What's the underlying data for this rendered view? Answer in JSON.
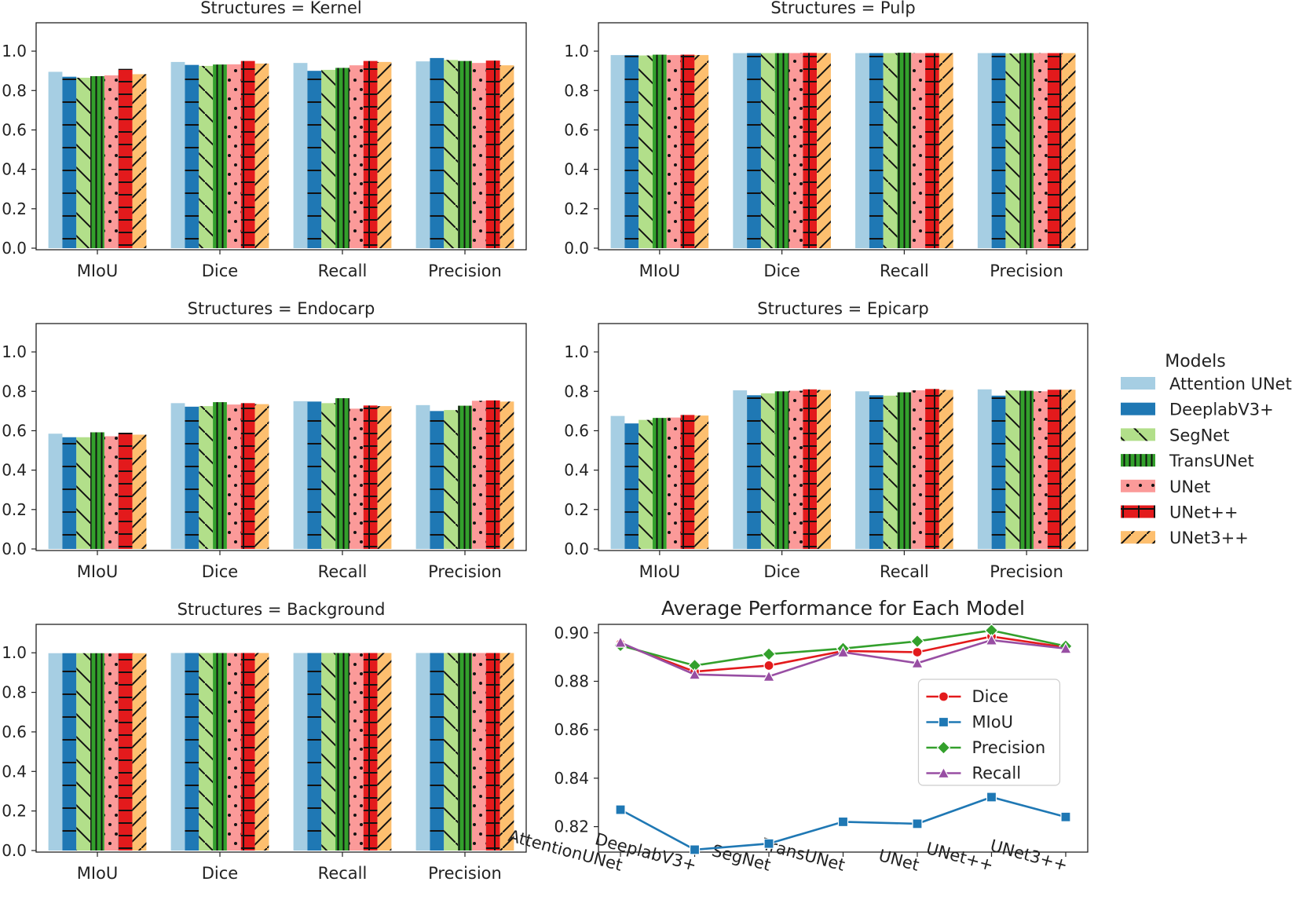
{
  "figure": {
    "legend": {
      "title": "Models",
      "items": [
        "Attention UNet",
        "DeeplabV3+",
        "SegNet",
        "TransUNet",
        "UNet",
        "UNet++",
        "UNet3++"
      ]
    }
  },
  "model_styles": [
    {
      "color": "#a6cee3",
      "hatch": "none"
    },
    {
      "color": "#1f78b4",
      "hatch": "hline"
    },
    {
      "color": "#b2df8a",
      "hatch": "backslash"
    },
    {
      "color": "#33a02c",
      "hatch": "vline"
    },
    {
      "color": "#fb9a99",
      "hatch": "dots"
    },
    {
      "color": "#e31a1c",
      "hatch": "grid"
    },
    {
      "color": "#fdbf6f",
      "hatch": "slash"
    }
  ],
  "line_styles": {
    "Dice": {
      "color": "#e31a1c",
      "marker": "circle"
    },
    "MIoU": {
      "color": "#1f78b4",
      "marker": "square"
    },
    "Precision": {
      "color": "#33a02c",
      "marker": "diamond"
    },
    "Recall": {
      "color": "#984ea3",
      "marker": "triangle"
    }
  },
  "chart_data": [
    {
      "type": "bar",
      "title": "Structures = Kernel",
      "categories": [
        "MIoU",
        "Dice",
        "Recall",
        "Precision"
      ],
      "yticks": [
        "0.0",
        "0.2",
        "0.4",
        "0.6",
        "0.8",
        "1.0"
      ],
      "ylim": [
        0,
        1.1
      ],
      "series": [
        {
          "name": "Attention UNet",
          "values": [
            0.895,
            0.945,
            0.94,
            0.948
          ]
        },
        {
          "name": "DeeplabV3+",
          "values": [
            0.87,
            0.93,
            0.9,
            0.965
          ]
        },
        {
          "name": "SegNet",
          "values": [
            0.865,
            0.925,
            0.905,
            0.955
          ]
        },
        {
          "name": "TransUNet",
          "values": [
            0.873,
            0.932,
            0.915,
            0.95
          ]
        },
        {
          "name": "UNet",
          "values": [
            0.877,
            0.933,
            0.928,
            0.94
          ]
        },
        {
          "name": "UNet++",
          "values": [
            0.91,
            0.95,
            0.95,
            0.952
          ]
        },
        {
          "name": "UNet3++",
          "values": [
            0.883,
            0.937,
            0.945,
            0.928
          ]
        }
      ]
    },
    {
      "type": "bar",
      "title": "Structures = Pulp",
      "categories": [
        "MIoU",
        "Dice",
        "Recall",
        "Precision"
      ],
      "yticks": [
        "0.0",
        "0.2",
        "0.4",
        "0.6",
        "0.8",
        "1.0"
      ],
      "ylim": [
        0,
        1.1
      ],
      "series": [
        {
          "name": "Attention UNet",
          "values": [
            0.98,
            0.99,
            0.99,
            0.99
          ]
        },
        {
          "name": "DeeplabV3+",
          "values": [
            0.98,
            0.99,
            0.99,
            0.99
          ]
        },
        {
          "name": "SegNet",
          "values": [
            0.978,
            0.99,
            0.99,
            0.988
          ]
        },
        {
          "name": "TransUNet",
          "values": [
            0.982,
            0.99,
            0.992,
            0.99
          ]
        },
        {
          "name": "UNet",
          "values": [
            0.98,
            0.99,
            0.99,
            0.99
          ]
        },
        {
          "name": "UNet++",
          "values": [
            0.982,
            0.991,
            0.99,
            0.99
          ]
        },
        {
          "name": "UNet3++",
          "values": [
            0.98,
            0.99,
            0.99,
            0.99
          ]
        }
      ]
    },
    {
      "type": "bar",
      "title": "Structures = Endocarp",
      "categories": [
        "MIoU",
        "Dice",
        "Recall",
        "Precision"
      ],
      "yticks": [
        "0.0",
        "0.2",
        "0.4",
        "0.6",
        "0.8",
        "1.0"
      ],
      "ylim": [
        0,
        1.1
      ],
      "series": [
        {
          "name": "Attention UNet",
          "values": [
            0.585,
            0.74,
            0.75,
            0.73
          ]
        },
        {
          "name": "DeeplabV3+",
          "values": [
            0.567,
            0.722,
            0.748,
            0.7
          ]
        },
        {
          "name": "SegNet",
          "values": [
            0.567,
            0.725,
            0.74,
            0.705
          ]
        },
        {
          "name": "TransUNet",
          "values": [
            0.592,
            0.745,
            0.765,
            0.727
          ]
        },
        {
          "name": "UNet",
          "values": [
            0.572,
            0.733,
            0.712,
            0.752
          ]
        },
        {
          "name": "UNet++",
          "values": [
            0.59,
            0.74,
            0.728,
            0.754
          ]
        },
        {
          "name": "UNet3++",
          "values": [
            0.58,
            0.735,
            0.725,
            0.748
          ]
        }
      ]
    },
    {
      "type": "bar",
      "title": "Structures = Epicarp",
      "categories": [
        "MIoU",
        "Dice",
        "Recall",
        "Precision"
      ],
      "yticks": [
        "0.0",
        "0.2",
        "0.4",
        "0.6",
        "0.8",
        "1.0"
      ],
      "ylim": [
        0,
        1.1
      ],
      "series": [
        {
          "name": "Attention UNet",
          "values": [
            0.675,
            0.805,
            0.8,
            0.81
          ]
        },
        {
          "name": "DeeplabV3+",
          "values": [
            0.637,
            0.78,
            0.78,
            0.778
          ]
        },
        {
          "name": "SegNet",
          "values": [
            0.655,
            0.79,
            0.778,
            0.805
          ]
        },
        {
          "name": "TransUNet",
          "values": [
            0.665,
            0.8,
            0.795,
            0.803
          ]
        },
        {
          "name": "UNet",
          "values": [
            0.667,
            0.803,
            0.805,
            0.8
          ]
        },
        {
          "name": "UNet++",
          "values": [
            0.68,
            0.81,
            0.812,
            0.808
          ]
        },
        {
          "name": "UNet3++",
          "values": [
            0.677,
            0.807,
            0.807,
            0.808
          ]
        }
      ]
    },
    {
      "type": "bar",
      "title": "Structures = Background",
      "categories": [
        "MIoU",
        "Dice",
        "Recall",
        "Precision"
      ],
      "yticks": [
        "0.0",
        "0.2",
        "0.4",
        "0.6",
        "0.8",
        "1.0"
      ],
      "ylim": [
        0,
        1.1
      ],
      "series": [
        {
          "name": "Attention UNet",
          "values": [
            0.998,
            0.999,
            0.999,
            0.999
          ]
        },
        {
          "name": "DeeplabV3+",
          "values": [
            0.998,
            0.999,
            0.999,
            0.999
          ]
        },
        {
          "name": "SegNet",
          "values": [
            0.998,
            0.999,
            0.999,
            0.999
          ]
        },
        {
          "name": "TransUNet",
          "values": [
            0.998,
            0.999,
            0.999,
            0.999
          ]
        },
        {
          "name": "UNet",
          "values": [
            0.998,
            0.999,
            0.999,
            0.999
          ]
        },
        {
          "name": "UNet++",
          "values": [
            0.998,
            0.999,
            0.999,
            0.999
          ]
        },
        {
          "name": "UNet3++",
          "values": [
            0.998,
            0.999,
            0.999,
            0.999
          ]
        }
      ]
    },
    {
      "type": "line",
      "title": "Average Performance for Each Model",
      "categories": [
        "AttentionUNet",
        "DeeplabV3+",
        "SegNet",
        "TransUNet",
        "UNet",
        "UNet++",
        "UNet3++"
      ],
      "yticks": [
        "0.82",
        "0.84",
        "0.86",
        "0.88",
        "0.90"
      ],
      "ylim": [
        0.8095,
        0.9035
      ],
      "series": [
        {
          "name": "Dice",
          "values": [
            0.8955,
            0.884,
            0.8865,
            0.8925,
            0.892,
            0.8985,
            0.894
          ]
        },
        {
          "name": "MIoU",
          "values": [
            0.827,
            0.8105,
            0.813,
            0.822,
            0.8212,
            0.8322,
            0.824
          ]
        },
        {
          "name": "Precision",
          "values": [
            0.8948,
            0.8865,
            0.8912,
            0.8935,
            0.8965,
            0.901,
            0.8945
          ]
        },
        {
          "name": "Recall",
          "values": [
            0.896,
            0.8828,
            0.882,
            0.892,
            0.8875,
            0.897,
            0.8935
          ]
        }
      ]
    }
  ]
}
